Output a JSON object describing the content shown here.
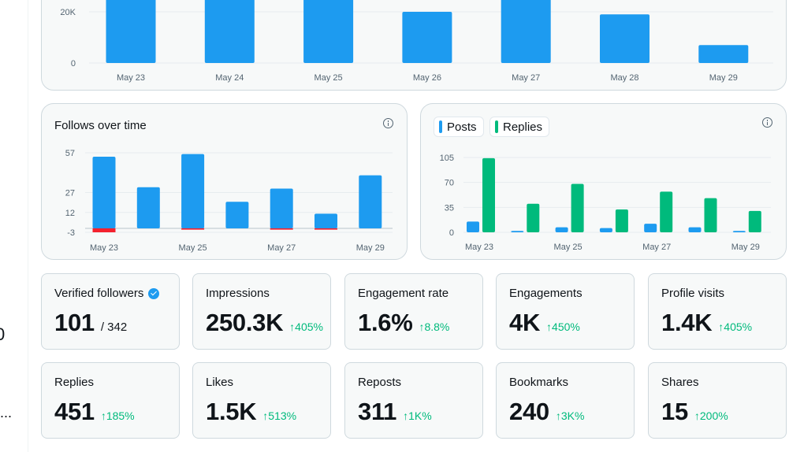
{
  "colors": {
    "posts": "#1d9bf0",
    "replies": "#00ba7c",
    "unfollows": "#f4212e",
    "positive": "#00ba7c",
    "grid": "#e7ecef",
    "tick": "#536471"
  },
  "left_fragments": {
    "frag_a": "0",
    "frag_b": "..."
  },
  "impressions_chart": {
    "type": "bar",
    "categories": [
      "May 23",
      "May 24",
      "May 25",
      "May 26",
      "May 27",
      "May 28",
      "May 29"
    ],
    "values": [
      38000,
      40000,
      39000,
      20000,
      39000,
      19000,
      7000
    ],
    "yticks": [
      0,
      20000
    ],
    "ytick_labels": [
      "0",
      "20K"
    ]
  },
  "follows_chart": {
    "title": "Follows over time",
    "info_icon": "info-icon",
    "type": "bar",
    "categories": [
      "May 23",
      "May 24",
      "May 25",
      "May 26",
      "May 27",
      "May 28",
      "May 29"
    ],
    "x_tick_labels": [
      "May 23",
      "May 25",
      "May 27",
      "May 29"
    ],
    "series": [
      {
        "values": [
          54,
          31,
          56,
          20,
          30,
          11,
          40
        ]
      },
      {
        "values": [
          -3,
          0,
          -1,
          0,
          -1,
          -1,
          0
        ]
      }
    ],
    "yticks": [
      -3,
      12,
      27,
      57
    ],
    "ylim": [
      -4,
      58
    ]
  },
  "posts_replies_chart": {
    "info_icon": "info-icon",
    "legend": [
      {
        "label": "Posts"
      },
      {
        "label": "Replies"
      }
    ],
    "type": "bar",
    "categories": [
      "May 23",
      "May 24",
      "May 25",
      "May 26",
      "May 27",
      "May 28",
      "May 29"
    ],
    "x_tick_labels": [
      "May 23",
      "May 25",
      "May 27",
      "May 29"
    ],
    "series": [
      {
        "name": "Posts",
        "values": [
          15,
          2,
          7,
          6,
          12,
          7,
          2
        ]
      },
      {
        "name": "Replies",
        "values": [
          104,
          40,
          68,
          32,
          57,
          48,
          30
        ]
      }
    ],
    "yticks": [
      0,
      35,
      70,
      105
    ],
    "ylim": [
      0,
      108
    ]
  },
  "metrics": [
    {
      "label": "Verified followers",
      "value": "101",
      "sub": "/ 342",
      "badge_icon": "verified-badge-icon"
    },
    {
      "label": "Impressions",
      "value": "250.3K",
      "change": "↑405%"
    },
    {
      "label": "Engagement rate",
      "value": "1.6%",
      "change": "↑8.8%"
    },
    {
      "label": "Engagements",
      "value": "4K",
      "change": "↑450%"
    },
    {
      "label": "Profile visits",
      "value": "1.4K",
      "change": "↑405%"
    },
    {
      "label": "Replies",
      "value": "451",
      "change": "↑185%"
    },
    {
      "label": "Likes",
      "value": "1.5K",
      "change": "↑513%"
    },
    {
      "label": "Reposts",
      "value": "311",
      "change": "↑1K%"
    },
    {
      "label": "Bookmarks",
      "value": "240",
      "change": "↑3K%"
    },
    {
      "label": "Shares",
      "value": "15",
      "change": "↑200%"
    }
  ]
}
